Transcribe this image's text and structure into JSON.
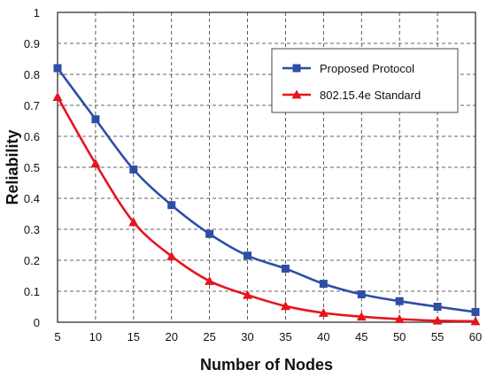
{
  "chart_data": {
    "type": "line",
    "title": "",
    "xlabel": "Number of Nodes",
    "ylabel": "Reliability",
    "x": [
      5,
      10,
      15,
      20,
      25,
      30,
      35,
      40,
      45,
      50,
      55,
      60
    ],
    "xlim": [
      5,
      60
    ],
    "ylim": [
      0,
      1
    ],
    "xticks": [
      "5",
      "10",
      "15",
      "20",
      "25",
      "30",
      "35",
      "40",
      "45",
      "50",
      "55",
      "60"
    ],
    "yticks": [
      "0",
      "0.1",
      "0.2",
      "0.3",
      "0.4",
      "0.5",
      "0.6",
      "0.7",
      "0.8",
      "0.9",
      "1"
    ],
    "grid": true,
    "legend_position": "top-right",
    "series": [
      {
        "name": "Proposed Protocol",
        "color": "#2e4ea6",
        "marker": "square",
        "values": [
          0.82,
          0.655,
          0.493,
          0.378,
          0.285,
          0.215,
          0.173,
          0.124,
          0.09,
          0.068,
          0.05,
          0.033
        ]
      },
      {
        "name": "802.15.4e Standard",
        "color": "#e8141c",
        "marker": "triangle",
        "values": [
          0.727,
          0.512,
          0.323,
          0.213,
          0.133,
          0.088,
          0.052,
          0.03,
          0.018,
          0.01,
          0.005,
          0.003
        ]
      }
    ]
  }
}
